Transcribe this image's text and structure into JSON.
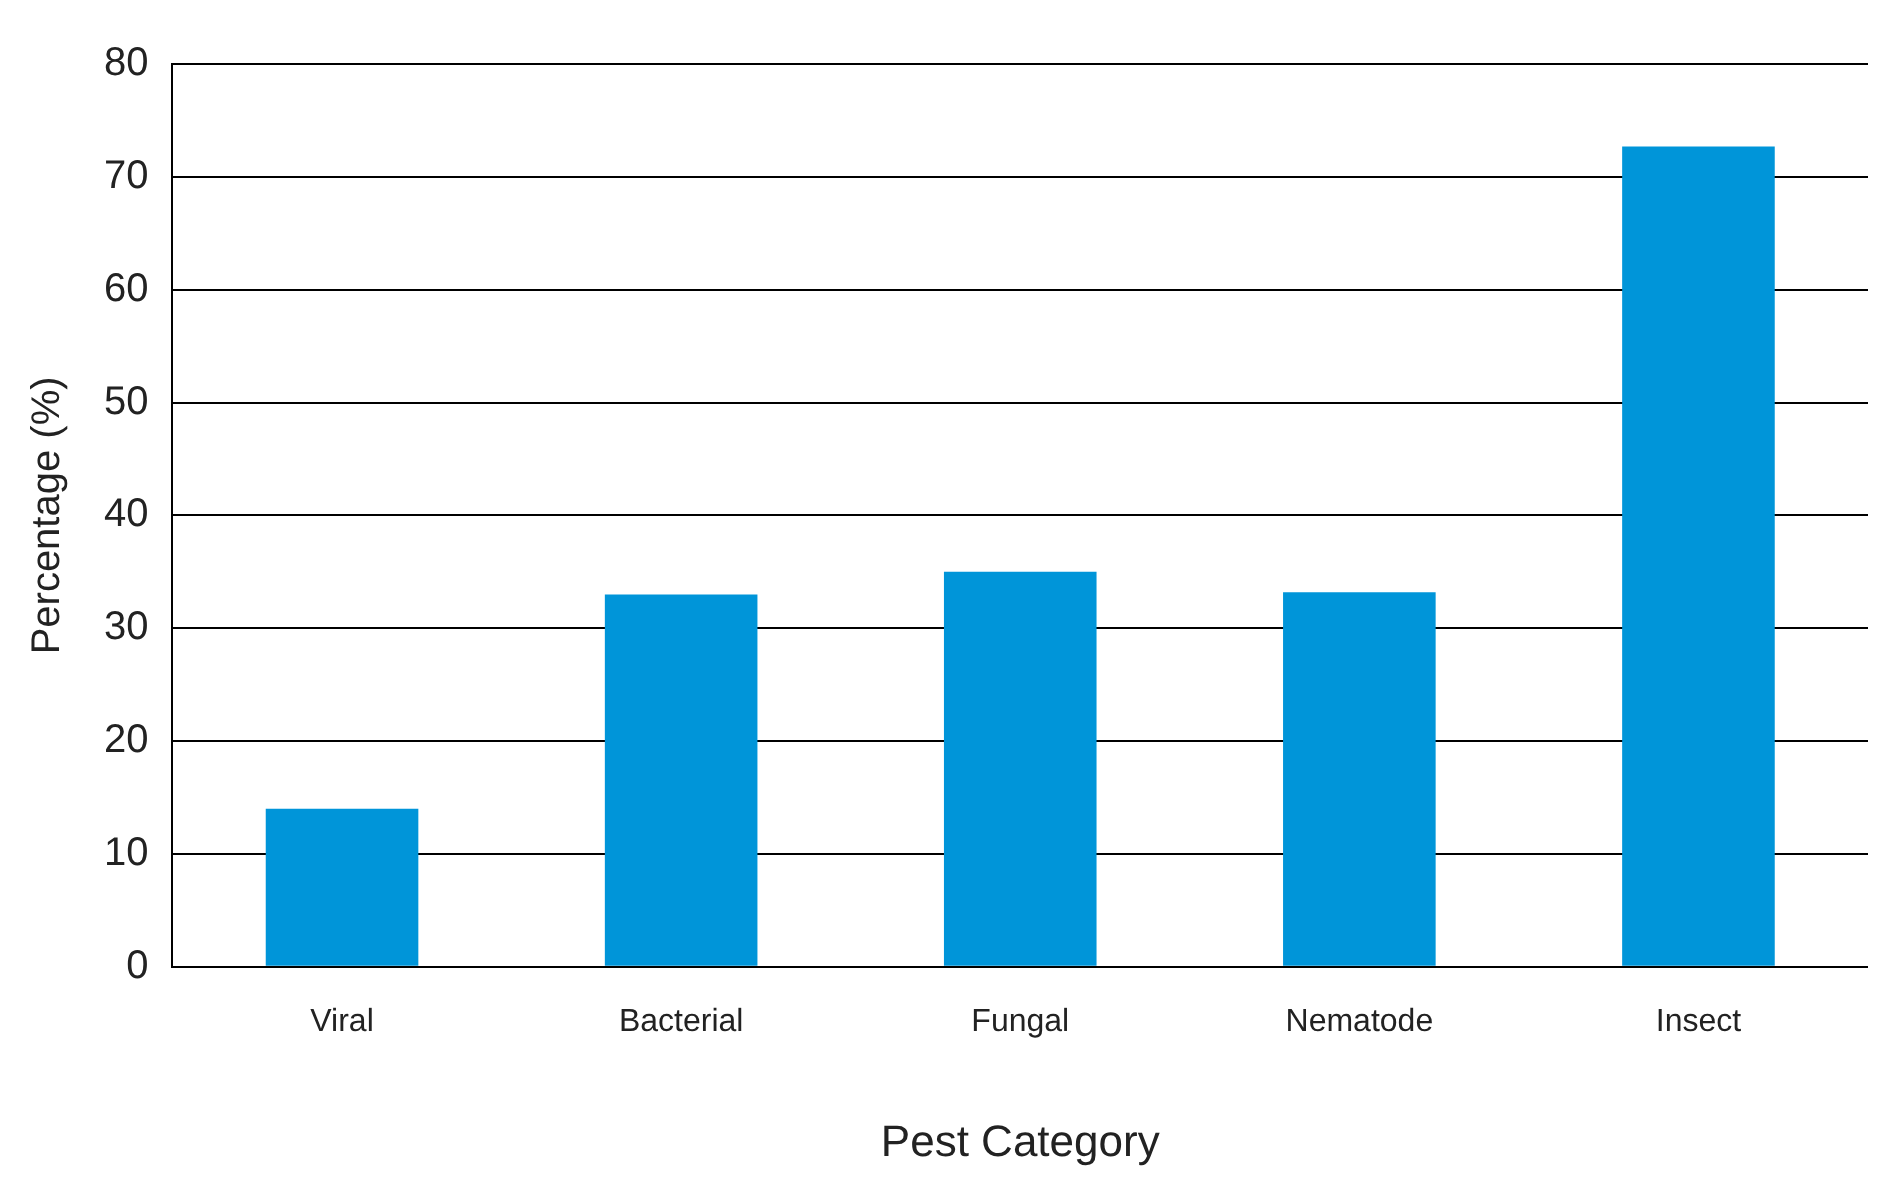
{
  "chart_data": {
    "type": "bar",
    "xlabel": "Pest Category",
    "ylabel": "Percentage (%)",
    "categories": [
      "Viral",
      "Bacterial",
      "Fungal",
      "Nematode",
      "Insect"
    ],
    "values": [
      14,
      33,
      35,
      33.2,
      72.7
    ],
    "color": "#0095d9",
    "ylim": [
      0,
      80
    ],
    "yticks": [
      0,
      10,
      20,
      30,
      40,
      50,
      60,
      70,
      80
    ],
    "grid": "y",
    "legend": false
  }
}
